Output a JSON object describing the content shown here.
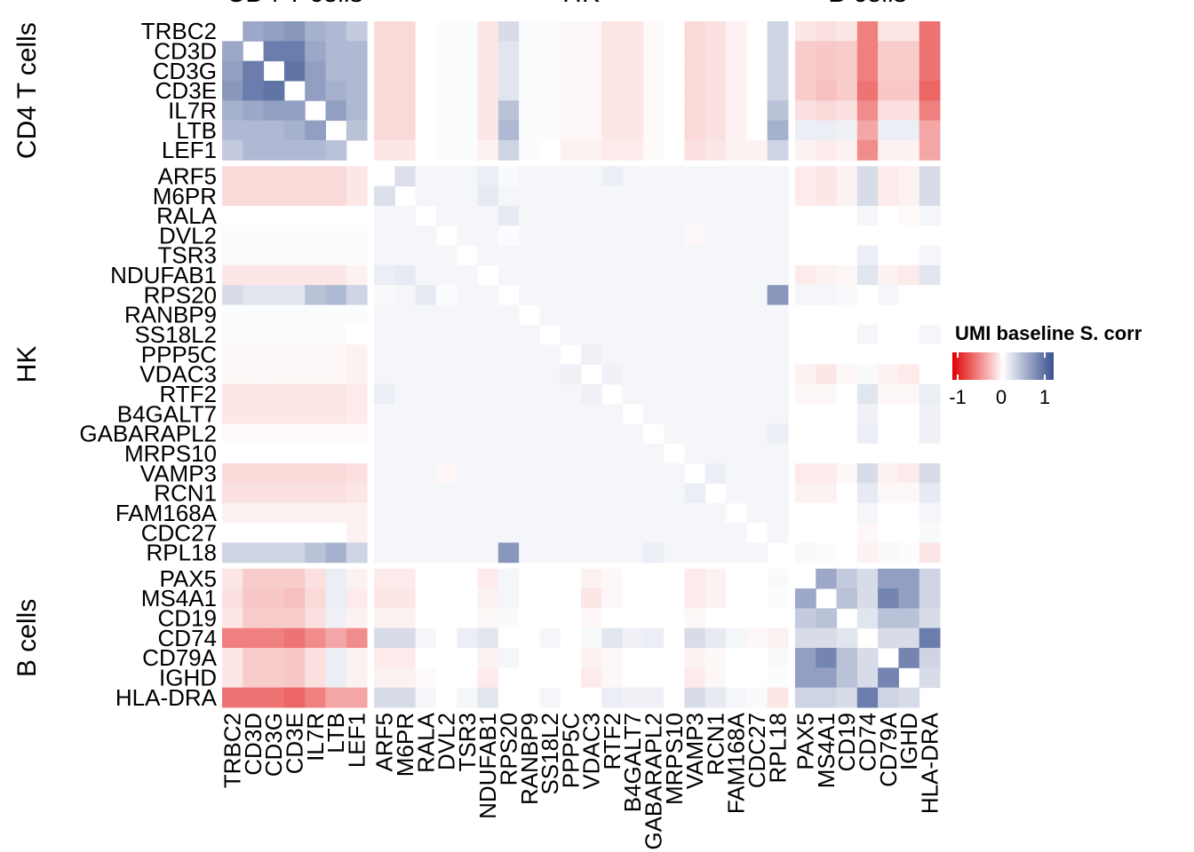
{
  "chart_data": {
    "type": "heatmap",
    "groups": [
      {
        "name": "CD4 T cells",
        "genes": [
          "TRBC2",
          "CD3D",
          "CD3G",
          "CD3E",
          "IL7R",
          "LTB",
          "LEF1"
        ]
      },
      {
        "name": "HK",
        "genes": [
          "ARF5",
          "M6PR",
          "RALA",
          "DVL2",
          "TSR3",
          "NDUFAB1",
          "RPS20",
          "RANBP9",
          "SS18L2",
          "PPP5C",
          "VDAC3",
          "RTF2",
          "B4GALT7",
          "GABARAPL2",
          "MRPS10",
          "VAMP3",
          "RCN1",
          "FAM168A",
          "CDC27",
          "RPL18"
        ]
      },
      {
        "name": "B cells",
        "genes": [
          "PAX5",
          "MS4A1",
          "CD19",
          "CD74",
          "CD79A",
          "IGHD",
          "HLA-DRA"
        ]
      }
    ],
    "values": [
      [
        null,
        0.5,
        0.55,
        0.6,
        0.45,
        0.4,
        0.3,
        -0.15,
        -0.15,
        0,
        0.02,
        0.02,
        -0.1,
        0.2,
        0.02,
        0.02,
        -0.03,
        -0.03,
        -0.1,
        -0.1,
        -0.02,
        0,
        -0.15,
        -0.12,
        -0.05,
        0,
        0.25,
        -0.1,
        -0.12,
        -0.1,
        -0.5,
        -0.1,
        -0.1,
        -0.55
      ],
      [
        0.5,
        null,
        0.75,
        0.75,
        0.5,
        0.4,
        0.4,
        -0.15,
        -0.15,
        0,
        0.02,
        0.02,
        -0.1,
        0.15,
        0.02,
        0.02,
        -0.03,
        -0.03,
        -0.1,
        -0.1,
        -0.02,
        0,
        -0.15,
        -0.12,
        -0.05,
        0,
        0.25,
        -0.2,
        -0.22,
        -0.2,
        -0.5,
        -0.2,
        -0.2,
        -0.55
      ],
      [
        0.55,
        0.75,
        null,
        0.8,
        0.55,
        0.4,
        0.4,
        -0.15,
        -0.15,
        0,
        0.02,
        0.02,
        -0.1,
        0.15,
        0.02,
        0.02,
        -0.03,
        -0.03,
        -0.1,
        -0.1,
        -0.02,
        0,
        -0.15,
        -0.12,
        -0.05,
        0,
        0.25,
        -0.2,
        -0.22,
        -0.2,
        -0.5,
        -0.2,
        -0.2,
        -0.55
      ],
      [
        0.6,
        0.75,
        0.8,
        null,
        0.55,
        0.45,
        0.4,
        -0.15,
        -0.15,
        0,
        0.02,
        0.02,
        -0.1,
        0.15,
        0.02,
        0.02,
        -0.03,
        -0.03,
        -0.1,
        -0.1,
        -0.02,
        0,
        -0.15,
        -0.12,
        -0.05,
        0,
        0.25,
        -0.2,
        -0.25,
        -0.2,
        -0.55,
        -0.22,
        -0.22,
        -0.6
      ],
      [
        0.45,
        0.5,
        0.55,
        0.55,
        null,
        0.55,
        0.4,
        -0.15,
        -0.15,
        0,
        0.02,
        0.02,
        -0.1,
        0.35,
        0.02,
        0.02,
        -0.03,
        -0.03,
        -0.1,
        -0.1,
        -0.02,
        0,
        -0.15,
        -0.12,
        -0.05,
        0,
        0.35,
        -0.12,
        -0.15,
        -0.12,
        -0.45,
        -0.12,
        -0.12,
        -0.5
      ],
      [
        0.4,
        0.4,
        0.4,
        0.45,
        0.55,
        null,
        0.35,
        -0.15,
        -0.15,
        0,
        0.02,
        0.02,
        -0.1,
        0.4,
        0.02,
        0.02,
        -0.03,
        -0.03,
        -0.1,
        -0.1,
        -0.02,
        0,
        -0.15,
        -0.12,
        -0.05,
        0,
        0.45,
        0.1,
        0.1,
        0.08,
        -0.35,
        0.1,
        0.1,
        -0.35
      ],
      [
        0.3,
        0.4,
        0.4,
        0.4,
        0.4,
        0.35,
        null,
        -0.1,
        -0.1,
        0,
        0.02,
        0.02,
        -0.05,
        0.25,
        0.02,
        0,
        -0.05,
        -0.05,
        -0.08,
        -0.08,
        -0.02,
        0,
        -0.12,
        -0.1,
        -0.05,
        -0.05,
        0.25,
        -0.05,
        -0.08,
        -0.05,
        -0.45,
        -0.05,
        -0.05,
        -0.35
      ],
      [
        -0.15,
        -0.15,
        -0.15,
        -0.15,
        -0.15,
        -0.15,
        -0.1,
        null,
        0.18,
        0.05,
        0.05,
        0.05,
        0.1,
        0.03,
        0.05,
        0.05,
        0.05,
        0.05,
        0.1,
        0.05,
        0.05,
        0.05,
        0.05,
        0.05,
        0.05,
        0.05,
        0.05,
        -0.08,
        -0.1,
        -0.05,
        0.2,
        -0.08,
        -0.05,
        0.2
      ],
      [
        -0.15,
        -0.15,
        -0.15,
        -0.15,
        -0.15,
        -0.15,
        -0.1,
        0.18,
        null,
        0.05,
        0.05,
        0.05,
        0.12,
        0.05,
        0.05,
        0.05,
        0.05,
        0.05,
        0.05,
        0.05,
        0.05,
        0.05,
        0.05,
        0.05,
        0.05,
        0.05,
        0.05,
        -0.08,
        -0.1,
        -0.05,
        0.2,
        -0.08,
        -0.05,
        0.2
      ],
      [
        0,
        0,
        0,
        0,
        0,
        0,
        0,
        0.05,
        0.05,
        null,
        0.05,
        0.05,
        0.05,
        0.12,
        0.05,
        0.05,
        0.05,
        0.05,
        0.05,
        0.05,
        0.05,
        0.05,
        0.05,
        0.05,
        0.05,
        0.05,
        0.05,
        0,
        0,
        0,
        0.05,
        0,
        -0.02,
        0.05
      ],
      [
        0.02,
        0.02,
        0.02,
        0.02,
        0.02,
        0.02,
        0.02,
        0.05,
        0.05,
        0.05,
        null,
        0.05,
        0.05,
        0.02,
        0.05,
        0.05,
        0.05,
        0.05,
        0.05,
        0.05,
        0.05,
        0.05,
        -0.03,
        0.05,
        0.05,
        0.05,
        0.05,
        0,
        0,
        0,
        0,
        0,
        0,
        0
      ],
      [
        0.02,
        0.02,
        0.02,
        0.02,
        0.02,
        0.02,
        0.02,
        0.05,
        0.05,
        0.05,
        0.05,
        null,
        0.05,
        0.05,
        0.05,
        0.05,
        0.05,
        0.05,
        0.05,
        0.05,
        0.05,
        0.05,
        0.05,
        0.05,
        0.05,
        0.05,
        0.05,
        0,
        0,
        0,
        0.1,
        0,
        0,
        0.05
      ],
      [
        -0.1,
        -0.1,
        -0.1,
        -0.1,
        -0.1,
        -0.1,
        -0.05,
        0.1,
        0.12,
        0.05,
        0.05,
        0.05,
        null,
        0.05,
        0.05,
        0.05,
        0.05,
        0.05,
        0.05,
        0.05,
        0.05,
        0.05,
        0.05,
        0.05,
        0.05,
        0.05,
        0.05,
        -0.08,
        -0.05,
        -0.03,
        0.15,
        -0.05,
        -0.08,
        0.15
      ],
      [
        0.2,
        0.15,
        0.15,
        0.15,
        0.35,
        0.4,
        0.25,
        0.03,
        0.05,
        0.12,
        0.02,
        0.05,
        0.05,
        null,
        0.05,
        0.05,
        0.05,
        0.05,
        0.05,
        0.05,
        0.05,
        0.05,
        0.05,
        0.05,
        0.05,
        0.05,
        0.6,
        0.05,
        0.05,
        0.03,
        0,
        0.05,
        0,
        0
      ],
      [
        0.02,
        0.02,
        0.02,
        0.02,
        0.02,
        0.02,
        0.02,
        0.05,
        0.05,
        0.05,
        0.05,
        0.05,
        0.05,
        0.05,
        null,
        0.05,
        0.05,
        0.05,
        0.05,
        0.05,
        0.05,
        0.05,
        0.05,
        0.05,
        0.05,
        0.05,
        0.05,
        0,
        0,
        0,
        0,
        0,
        0,
        0
      ],
      [
        0.02,
        0.02,
        0.02,
        0.02,
        0.02,
        0.02,
        0,
        0.05,
        0.05,
        0.05,
        0.05,
        0.05,
        0.05,
        0.05,
        0.05,
        null,
        0.05,
        0.05,
        0.05,
        0.05,
        0.05,
        0.05,
        0.05,
        0.05,
        0.05,
        0.05,
        0.05,
        0,
        0,
        0,
        0.05,
        0,
        0,
        0.05
      ],
      [
        -0.03,
        -0.03,
        -0.03,
        -0.03,
        -0.03,
        -0.03,
        -0.05,
        0.05,
        0.05,
        0.05,
        0.05,
        0.05,
        0.05,
        0.05,
        0.05,
        0.05,
        null,
        0.08,
        0.05,
        0.05,
        0.05,
        0.05,
        0.05,
        0.05,
        0.05,
        0.05,
        0.05,
        0,
        0,
        0,
        0,
        0,
        0,
        0
      ],
      [
        -0.03,
        -0.03,
        -0.03,
        -0.03,
        -0.03,
        -0.03,
        -0.05,
        0.05,
        0.05,
        0.05,
        0.05,
        0.05,
        0.05,
        0.05,
        0.05,
        0.05,
        0.08,
        null,
        0.08,
        0.05,
        0.05,
        0.05,
        0.05,
        0.05,
        0.05,
        0.05,
        0.05,
        -0.05,
        -0.1,
        -0.03,
        0.03,
        -0.05,
        -0.08,
        0
      ],
      [
        -0.1,
        -0.1,
        -0.1,
        -0.1,
        -0.1,
        -0.1,
        -0.08,
        0.1,
        0.05,
        0.05,
        0.05,
        0.05,
        0.05,
        0.05,
        0.05,
        0.05,
        0.05,
        0.08,
        null,
        0.05,
        0.05,
        0.05,
        0.05,
        0.05,
        0.05,
        0.05,
        0.05,
        -0.03,
        -0.03,
        0,
        0.15,
        -0.03,
        -0.03,
        0.1
      ],
      [
        -0.1,
        -0.1,
        -0.1,
        -0.1,
        -0.1,
        -0.1,
        -0.08,
        0.05,
        0.05,
        0.05,
        0.05,
        0.05,
        0.05,
        0.05,
        0.05,
        0.05,
        0.05,
        0.05,
        0.05,
        null,
        0.05,
        0.05,
        0.05,
        0.05,
        0.05,
        0.05,
        0.05,
        0,
        0,
        0,
        0.08,
        0,
        0,
        0.08
      ],
      [
        -0.02,
        -0.02,
        -0.02,
        -0.02,
        -0.02,
        -0.02,
        -0.02,
        0.05,
        0.05,
        0.05,
        0.05,
        0.05,
        0.05,
        0.05,
        0.05,
        0.05,
        0.05,
        0.05,
        0.05,
        0.05,
        null,
        0.05,
        0.05,
        0.05,
        0.05,
        0.05,
        0.1,
        0,
        0,
        0,
        0.1,
        0,
        0,
        0.08
      ],
      [
        0,
        0,
        0,
        0,
        0,
        0,
        0,
        0.05,
        0.05,
        0.05,
        0.05,
        0.05,
        0.05,
        0.05,
        0.05,
        0.05,
        0.05,
        0.05,
        0.05,
        0.05,
        0.05,
        null,
        0.05,
        0.05,
        0.05,
        0.05,
        0.05,
        0,
        0,
        0,
        0,
        0,
        0,
        0
      ],
      [
        -0.15,
        -0.15,
        -0.15,
        -0.15,
        -0.15,
        -0.15,
        -0.12,
        0.05,
        0.05,
        0.05,
        -0.03,
        0.05,
        0.05,
        0.05,
        0.05,
        0.05,
        0.05,
        0.05,
        0.05,
        0.05,
        0.05,
        0.05,
        null,
        0.1,
        0.05,
        0.05,
        0.05,
        -0.08,
        -0.08,
        -0.03,
        0.2,
        -0.05,
        -0.08,
        0.2
      ],
      [
        -0.12,
        -0.12,
        -0.12,
        -0.12,
        -0.12,
        -0.12,
        -0.1,
        0.05,
        0.05,
        0.05,
        0.05,
        0.05,
        0.05,
        0.05,
        0.05,
        0.05,
        0.05,
        0.05,
        0.05,
        0.05,
        0.05,
        0.05,
        0.1,
        null,
        0.05,
        0.05,
        0.05,
        -0.05,
        -0.05,
        0,
        0.12,
        -0.03,
        -0.03,
        0.12
      ],
      [
        -0.05,
        -0.05,
        -0.05,
        -0.05,
        -0.05,
        -0.05,
        -0.05,
        0.05,
        0.05,
        0.05,
        0.05,
        0.05,
        0.05,
        0.05,
        0.05,
        0.05,
        0.05,
        0.05,
        0.05,
        0.05,
        0.05,
        0.05,
        0.05,
        0.05,
        null,
        0.05,
        0.05,
        0,
        0,
        0,
        0.05,
        0,
        0,
        0.05
      ],
      [
        0,
        0,
        0,
        0,
        0,
        0,
        -0.05,
        0.05,
        0.05,
        0.05,
        0.05,
        0.05,
        0.05,
        0.05,
        0.05,
        0.05,
        0.05,
        0.05,
        0.05,
        0.05,
        0.05,
        0.05,
        0.05,
        0.05,
        0.05,
        null,
        0.05,
        0,
        0,
        0,
        -0.03,
        0,
        0,
        0.03
      ],
      [
        0.25,
        0.25,
        0.25,
        0.25,
        0.35,
        0.45,
        0.25,
        0.05,
        0.05,
        0.05,
        0.05,
        0.05,
        0.05,
        0.6,
        0.05,
        0.05,
        0.05,
        0.05,
        0.05,
        0.05,
        0.1,
        0.05,
        0.05,
        0.05,
        0.05,
        0.05,
        null,
        0.03,
        0.02,
        0,
        -0.05,
        0.03,
        0.02,
        -0.1
      ],
      [
        -0.1,
        -0.2,
        -0.2,
        -0.2,
        -0.12,
        0.1,
        -0.05,
        -0.08,
        -0.08,
        0,
        0,
        0,
        -0.08,
        0.05,
        0,
        0,
        0,
        -0.05,
        -0.03,
        0,
        0,
        0,
        -0.08,
        -0.05,
        0,
        0,
        0.03,
        null,
        0.5,
        0.3,
        0.2,
        0.55,
        0.55,
        0.25
      ],
      [
        -0.12,
        -0.22,
        -0.22,
        -0.25,
        -0.15,
        0.1,
        -0.08,
        -0.1,
        -0.1,
        0,
        0,
        0,
        -0.05,
        0.05,
        0,
        0,
        0,
        -0.1,
        -0.03,
        0,
        0,
        0,
        -0.08,
        -0.05,
        0,
        0,
        0.02,
        0.5,
        null,
        0.35,
        0.2,
        0.7,
        0.55,
        0.25
      ],
      [
        -0.1,
        -0.2,
        -0.2,
        -0.2,
        -0.12,
        0.08,
        -0.05,
        -0.05,
        -0.05,
        0,
        0,
        0,
        -0.03,
        0.03,
        0,
        0,
        0,
        -0.03,
        0,
        0,
        0,
        0,
        -0.03,
        0,
        0,
        0,
        0,
        0.3,
        0.35,
        null,
        0.15,
        0.35,
        0.35,
        0.2
      ],
      [
        -0.5,
        -0.5,
        -0.5,
        -0.55,
        -0.45,
        -0.35,
        -0.45,
        0.2,
        0.2,
        0.05,
        0,
        0.1,
        0.15,
        0,
        0,
        0.05,
        0,
        0.03,
        0.15,
        0.08,
        0.1,
        0,
        0.2,
        0.12,
        0.05,
        -0.03,
        -0.05,
        0.2,
        0.2,
        0.15,
        null,
        0.2,
        0.2,
        0.75
      ],
      [
        -0.1,
        -0.2,
        -0.2,
        -0.22,
        -0.12,
        0.1,
        -0.05,
        -0.08,
        -0.08,
        0,
        0,
        0,
        -0.05,
        0.05,
        0,
        0,
        0,
        -0.05,
        -0.03,
        0,
        0,
        0,
        -0.05,
        -0.03,
        0,
        0,
        0.03,
        0.55,
        0.7,
        0.35,
        0.2,
        null,
        0.7,
        0.25
      ],
      [
        -0.1,
        -0.2,
        -0.2,
        -0.22,
        -0.12,
        0.1,
        -0.05,
        -0.05,
        -0.05,
        -0.02,
        0,
        0,
        -0.08,
        0,
        0,
        0,
        0,
        -0.08,
        -0.03,
        0,
        0,
        0,
        -0.08,
        -0.03,
        0,
        0,
        0.02,
        0.55,
        0.55,
        0.35,
        0.2,
        0.7,
        null,
        0.2
      ],
      [
        -0.55,
        -0.55,
        -0.55,
        -0.6,
        -0.5,
        -0.35,
        -0.35,
        0.2,
        0.2,
        0.05,
        0,
        0.05,
        0.15,
        0,
        0,
        0.05,
        0,
        0,
        0.1,
        0.08,
        0.08,
        0,
        0.2,
        0.12,
        0.05,
        0.03,
        -0.1,
        0.25,
        0.25,
        0.2,
        0.75,
        0.25,
        0.2,
        null
      ]
    ],
    "colorscale": {
      "low": "#e00000",
      "mid": "#ffffff",
      "high": "#3a5190"
    },
    "zlim": [
      -1,
      1
    ],
    "zticks": [
      -1,
      0,
      1
    ],
    "legend_title": "UMI baseline S. corr"
  }
}
